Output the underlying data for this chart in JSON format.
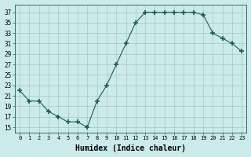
{
  "x": [
    0,
    1,
    2,
    3,
    4,
    5,
    6,
    7,
    8,
    9,
    10,
    11,
    12,
    13,
    14,
    15,
    16,
    17,
    18,
    19,
    20,
    21,
    22,
    23
  ],
  "y": [
    22,
    20,
    20,
    18,
    17,
    16,
    16,
    15,
    20,
    23,
    27,
    31,
    35,
    37,
    37,
    37,
    37,
    37,
    37,
    36.5,
    33,
    32,
    31,
    29.5
  ],
  "line_color": "#1a5c52",
  "marker": "+",
  "marker_size": 4,
  "bg_color": "#cceaea",
  "grid_color": "#aacccc",
  "xlabel": "Humidex (Indice chaleur)",
  "xlabel_fontsize": 7,
  "ylabel_ticks": [
    15,
    17,
    19,
    21,
    23,
    25,
    27,
    29,
    31,
    33,
    35,
    37
  ],
  "xlim": [
    -0.5,
    23.5
  ],
  "ylim": [
    14,
    38.5
  ],
  "xtick_labels": [
    "0",
    "1",
    "2",
    "3",
    "4",
    "5",
    "6",
    "7",
    "8",
    "9",
    "10",
    "11",
    "12",
    "13",
    "14",
    "15",
    "16",
    "17",
    "18",
    "19",
    "20",
    "21",
    "22",
    "23"
  ]
}
